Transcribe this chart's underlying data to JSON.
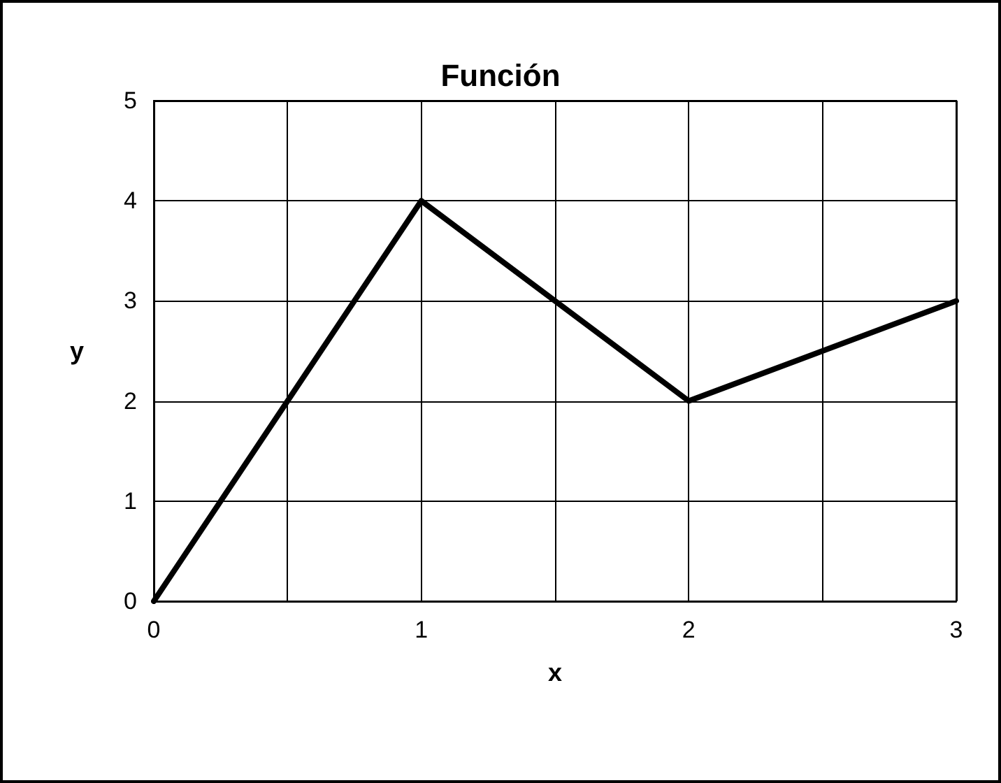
{
  "chart_data": {
    "type": "line",
    "title": "Función",
    "xlabel": "x",
    "ylabel": "y",
    "x": [
      0,
      1,
      2,
      3
    ],
    "series": [
      {
        "color": "#000000",
        "values": [
          0,
          4,
          2,
          3
        ]
      }
    ],
    "xlim": [
      0,
      3
    ],
    "xticks": [
      0,
      {
        "value": 0.5,
        "label": null
      },
      1,
      {
        "value": 1.5,
        "label": null
      },
      2,
      {
        "value": 2.5,
        "label": null
      },
      3
    ],
    "ylim": [
      0,
      5
    ],
    "yticks": [
      0,
      1,
      2,
      3,
      4,
      5
    ],
    "grid": true,
    "marker": "none",
    "line_style": "solid"
  }
}
